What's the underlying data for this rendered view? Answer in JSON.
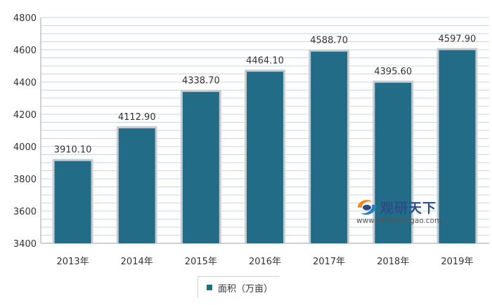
{
  "colors": {
    "bar": "#236c87",
    "bar_shadow": "#c8cdd2",
    "grid": "#c9d6e3",
    "axis": "#9aa3ad",
    "legend_swatch": "#236c87"
  },
  "chart_data": {
    "type": "bar",
    "categories": [
      "2013年",
      "2014年",
      "2015年",
      "2016年",
      "2017年",
      "2018年",
      "2019年"
    ],
    "series": [
      {
        "name": "面积（万亩）",
        "values": [
          3910.1,
          4112.9,
          4338.7,
          4464.1,
          4588.7,
          4395.6,
          4597.9
        ],
        "value_labels": [
          "3910.10",
          "4112.90",
          "4338.70",
          "4464.10",
          "4588.70",
          "4395.60",
          "4597.90"
        ]
      }
    ],
    "ylim": [
      3400,
      4800
    ],
    "yticks": [
      3400,
      3600,
      3800,
      4000,
      4200,
      4400,
      4600,
      4800
    ],
    "grid": true,
    "legend_position": "bottom-center"
  },
  "legend": {
    "label": "面积（万亩）"
  },
  "watermark": {
    "brand": "观研天下",
    "url": "www.chinabaogao.com",
    "logo_icon": "swirl-logo-icon"
  }
}
